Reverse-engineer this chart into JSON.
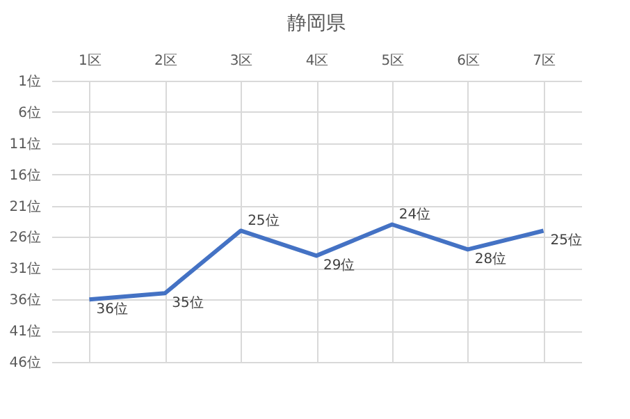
{
  "chart_data": {
    "type": "line",
    "title": "静岡県",
    "categories": [
      "1区",
      "2区",
      "3区",
      "4区",
      "5区",
      "6区",
      "7区"
    ],
    "series": [
      {
        "color": "#4472c4",
        "values": [
          36,
          35,
          25,
          29,
          24,
          28,
          25
        ],
        "value_labels": [
          "36位",
          "35位",
          "25位",
          "29位",
          "24位",
          "28位",
          "25位"
        ]
      }
    ],
    "ylim": [
      46,
      1
    ],
    "yticks": [
      {
        "value": 1,
        "label": "1位"
      },
      {
        "value": 6,
        "label": "6位"
      },
      {
        "value": 11,
        "label": "11位"
      },
      {
        "value": 16,
        "label": "16位"
      },
      {
        "value": 21,
        "label": "21位"
      },
      {
        "value": 26,
        "label": "26位"
      },
      {
        "value": 31,
        "label": "31位"
      },
      {
        "value": 36,
        "label": "36位"
      },
      {
        "value": 41,
        "label": "41位"
      },
      {
        "value": 46,
        "label": "46位"
      }
    ],
    "grid": true,
    "marker": "none",
    "line_style": "solid"
  }
}
